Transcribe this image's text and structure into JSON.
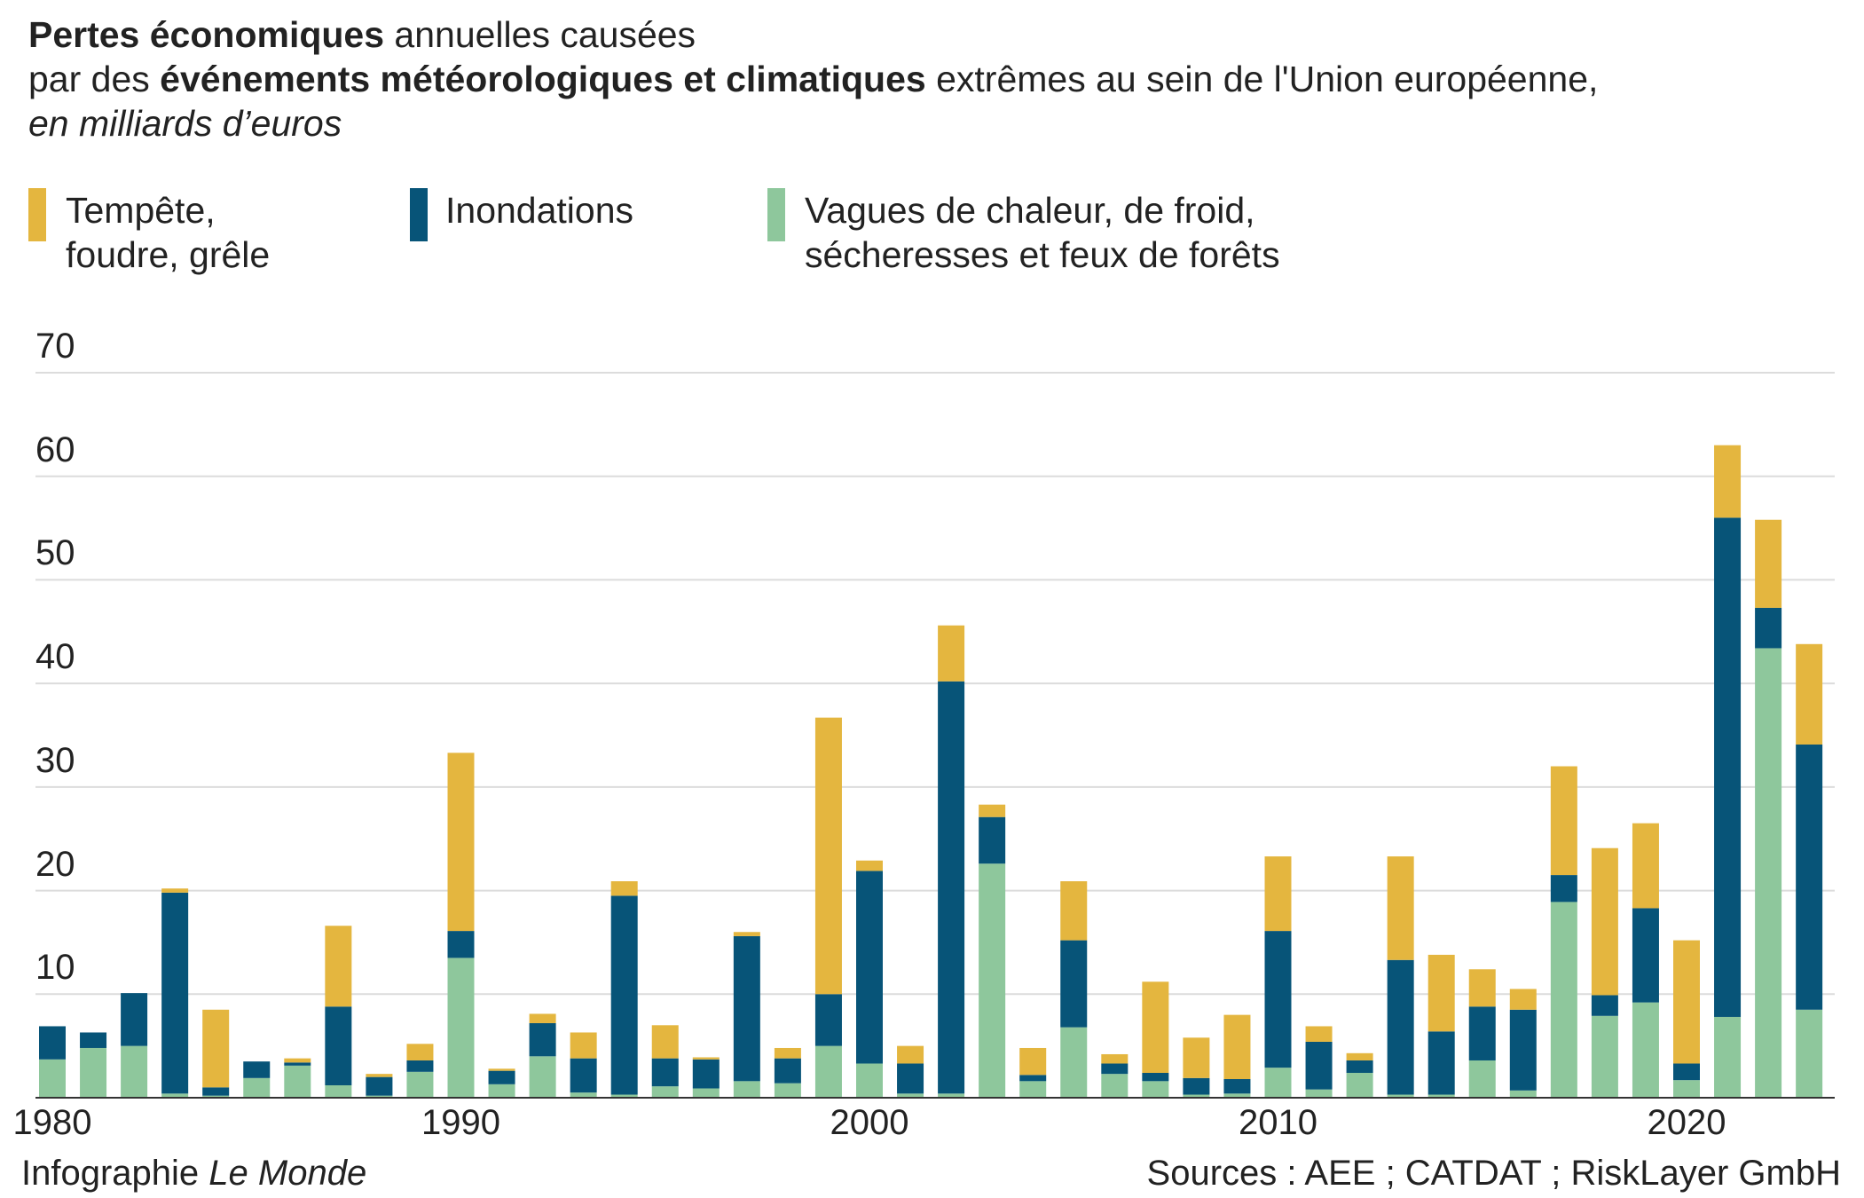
{
  "title": {
    "line1_bold": "Pertes économiques",
    "line1_rest": " annuelles causées",
    "line2_start": "par des ",
    "line2_bold": "événements météorologiques et climatiques",
    "line2_rest": " extrêmes au sein de l'Union européenne,",
    "line3": "en milliards d’euros"
  },
  "legend": {
    "storm_line1": "Tempête,",
    "storm_line2": "foudre, grêle",
    "flood": "Inondations",
    "heat_line1": "Vagues de chaleur, de froid,",
    "heat_line2": "sécheresses et feux de forêts"
  },
  "colors": {
    "storm": "#e4b63f",
    "flood": "#075478",
    "heat": "#8ec79c",
    "grid": "#dcdcdc",
    "axis": "#333333"
  },
  "footer": {
    "credit_prefix": "Infographie ",
    "credit_name": "Le Monde",
    "sources": "Sources : AEE ; CATDAT ; RiskLayer GmbH"
  },
  "chart_data": {
    "type": "bar",
    "stacked": true,
    "ylim": [
      0,
      70
    ],
    "yticks": [
      "70",
      "60",
      "50",
      "40",
      "30",
      "20",
      "10"
    ],
    "xticks": [
      "1980",
      "1990",
      "2000",
      "2010",
      "2020"
    ],
    "x": [
      1980,
      1981,
      1982,
      1983,
      1984,
      1985,
      1986,
      1987,
      1988,
      1989,
      1990,
      1991,
      1992,
      1993,
      1994,
      1995,
      1996,
      1997,
      1998,
      1999,
      2000,
      2001,
      2002,
      2003,
      2004,
      2005,
      2006,
      2007,
      2008,
      2009,
      2010,
      2011,
      2012,
      2013,
      2014,
      2015,
      2016,
      2017,
      2018,
      2019,
      2020,
      2021,
      2022,
      2023
    ],
    "series": [
      {
        "name": "Vagues de chaleur, de froid, sécheresses et feux de forêts",
        "key": "heat",
        "values": [
          3.7,
          4.8,
          5.0,
          0.4,
          0.2,
          1.9,
          3.1,
          1.2,
          0.2,
          2.5,
          13.5,
          1.3,
          4.0,
          0.5,
          0.3,
          1.1,
          0.9,
          1.6,
          1.4,
          5.0,
          3.3,
          0.4,
          0.4,
          22.6,
          1.6,
          6.8,
          2.3,
          1.6,
          0.3,
          0.4,
          2.9,
          0.8,
          2.4,
          0.3,
          0.3,
          3.6,
          0.7,
          18.9,
          7.9,
          9.2,
          1.7,
          7.8,
          43.4,
          8.5
        ]
      },
      {
        "name": "Inondations",
        "key": "flood",
        "values": [
          3.2,
          1.5,
          5.1,
          19.4,
          0.8,
          1.6,
          0.3,
          7.6,
          1.8,
          1.1,
          2.6,
          1.3,
          3.2,
          3.3,
          19.2,
          2.7,
          2.8,
          14.0,
          2.4,
          5.0,
          18.6,
          2.9,
          39.8,
          4.5,
          0.6,
          8.4,
          1.0,
          0.8,
          1.6,
          1.4,
          13.2,
          4.6,
          1.2,
          13.0,
          6.1,
          5.2,
          7.8,
          2.6,
          2.0,
          9.1,
          1.6,
          48.2,
          3.9,
          25.6
        ]
      },
      {
        "name": "Tempête, foudre, grêle",
        "key": "storm",
        "values": [
          0.0,
          0.0,
          0.0,
          0.4,
          7.5,
          0.0,
          0.4,
          7.8,
          0.3,
          1.6,
          17.2,
          0.2,
          0.9,
          2.5,
          1.4,
          3.2,
          0.2,
          0.4,
          1.0,
          26.7,
          1.0,
          1.7,
          5.4,
          1.2,
          2.6,
          5.7,
          0.9,
          8.8,
          3.9,
          6.2,
          7.2,
          1.5,
          0.7,
          10.0,
          7.4,
          3.6,
          2.0,
          10.5,
          14.2,
          8.2,
          11.9,
          7.0,
          8.5,
          9.7
        ]
      }
    ]
  }
}
